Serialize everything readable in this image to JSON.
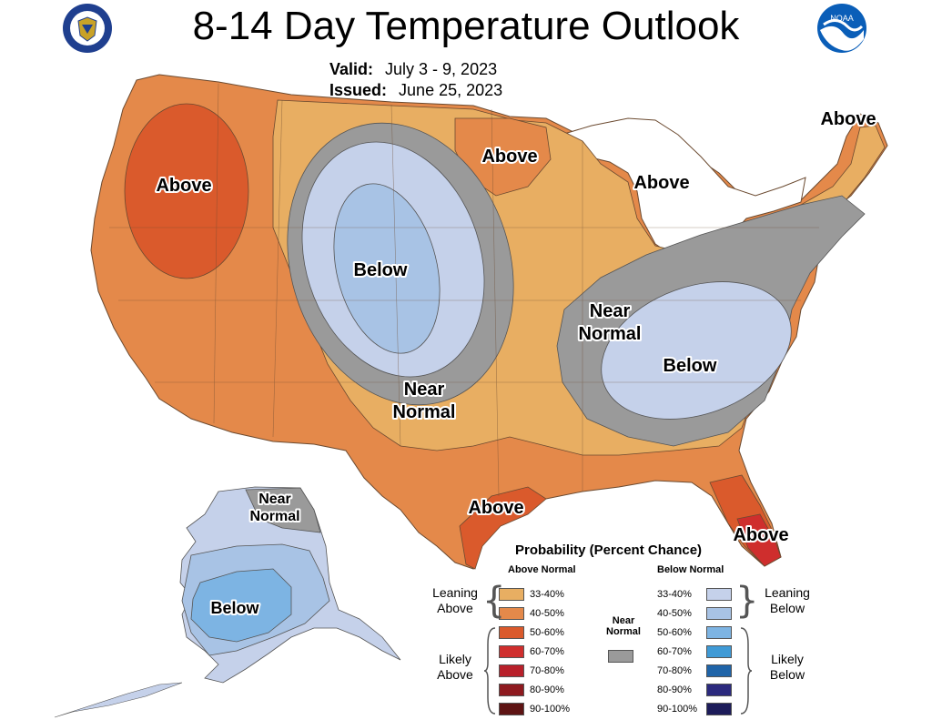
{
  "header": {
    "title": "8-14 Day Temperature Outlook",
    "valid_label": "Valid:",
    "valid_value": "July 3 - 9, 2023",
    "issued_label": "Issued:",
    "issued_value": "June 25, 2023"
  },
  "logos": {
    "left": "commerce-seal-icon",
    "right": "noaa-logo-icon",
    "noaa_text": "NOAA"
  },
  "regions": {
    "northwest_above": "Above",
    "rockies_below": "Below",
    "plains_near": [
      "Near",
      "Normal"
    ],
    "minnesota_above": "Above",
    "michigan_above": "Above",
    "newengland_above": "Above",
    "east_near": [
      "Near",
      "Normal"
    ],
    "southeast_below": "Below",
    "texas_above": "Above",
    "florida_above": "Above",
    "alaska_near": [
      "Near",
      "Normal"
    ],
    "alaska_below": "Below"
  },
  "colors": {
    "above_33_40": "#E8AE62",
    "above_40_50": "#E4894A",
    "above_50_60": "#DA5A2C",
    "above_60_70": "#CF2E2D",
    "above_70_80": "#B8202A",
    "above_80_90": "#8E1A1F",
    "above_90_100": "#5E1414",
    "near_normal": "#9A9A9A",
    "below_33_40": "#C5D1EA",
    "below_40_50": "#A8C3E5",
    "below_50_60": "#7DB4E3",
    "below_60_70": "#3F9AD6",
    "below_70_80": "#1F64A8",
    "below_80_90": "#2B2A7E",
    "below_90_100": "#1D1C5A",
    "water_ocean": "#ffffff"
  },
  "legend": {
    "title": "Probability (Percent Chance)",
    "above_header": "Above Normal",
    "below_header": "Below Normal",
    "near_header": [
      "Near",
      "Normal"
    ],
    "above_items": [
      "33-40%",
      "40-50%",
      "50-60%",
      "60-70%",
      "70-80%",
      "80-90%",
      "90-100%"
    ],
    "below_items": [
      "33-40%",
      "40-50%",
      "50-60%",
      "60-70%",
      "70-80%",
      "80-90%",
      "90-100%"
    ],
    "leaning_above": [
      "Leaning",
      "Above"
    ],
    "likely_above": [
      "Likely",
      "Above"
    ],
    "leaning_below": [
      "Leaning",
      "Below"
    ],
    "likely_below": [
      "Likely",
      "Below"
    ]
  }
}
